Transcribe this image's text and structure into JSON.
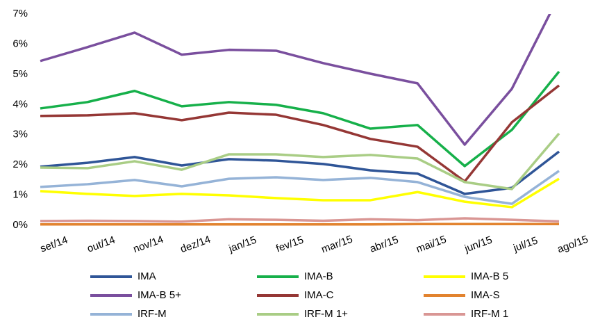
{
  "chart_data": {
    "type": "line",
    "categories": [
      "set/14",
      "out/14",
      "nov/14",
      "dez/14",
      "jan/15",
      "fev/15",
      "mar/15",
      "abr/15",
      "mai/15",
      "jun/15",
      "jul/15",
      "ago/15"
    ],
    "ylim": [
      0,
      7
    ],
    "yticks": [
      {
        "value": 0,
        "label": "0%"
      },
      {
        "value": 1,
        "label": "1%"
      },
      {
        "value": 2,
        "label": "2%"
      },
      {
        "value": 3,
        "label": "3%"
      },
      {
        "value": 4,
        "label": "4%"
      },
      {
        "value": 5,
        "label": "5%"
      },
      {
        "value": 6,
        "label": "6%"
      },
      {
        "value": 7,
        "label": "7%"
      }
    ],
    "grid": false,
    "legend": "bottom",
    "series": [
      {
        "name": "IMA",
        "color": "#2f5597",
        "values": [
          1.94,
          2.07,
          2.26,
          1.98,
          2.19,
          2.14,
          2.03,
          1.82,
          1.71,
          1.04,
          1.24,
          2.44
        ]
      },
      {
        "name": "IMA-B",
        "color": "#16b04a",
        "values": [
          3.87,
          4.08,
          4.45,
          3.94,
          4.08,
          3.99,
          3.71,
          3.2,
          3.32,
          1.96,
          3.16,
          5.09
        ]
      },
      {
        "name": "IMA-B 5",
        "color": "#ffff00",
        "values": [
          1.13,
          1.04,
          0.97,
          1.04,
          0.99,
          0.9,
          0.83,
          0.83,
          1.1,
          0.78,
          0.6,
          1.54
        ]
      },
      {
        "name": "IMA-B 5+",
        "color": "#7a4f9e",
        "values": [
          5.44,
          5.9,
          6.38,
          5.65,
          5.81,
          5.78,
          5.37,
          5.02,
          4.7,
          2.67,
          4.52,
          7.6
        ]
      },
      {
        "name": "IMA-C",
        "color": "#953735",
        "values": [
          3.62,
          3.64,
          3.71,
          3.48,
          3.73,
          3.66,
          3.32,
          2.86,
          2.6,
          1.45,
          3.41,
          4.63
        ]
      },
      {
        "name": "IMA-S",
        "color": "#e2832f",
        "values": [
          0.03,
          0.03,
          0.03,
          0.03,
          0.03,
          0.03,
          0.03,
          0.03,
          0.04,
          0.04,
          0.04,
          0.04
        ]
      },
      {
        "name": "IRF-M",
        "color": "#95b3d7",
        "values": [
          1.27,
          1.36,
          1.5,
          1.29,
          1.54,
          1.59,
          1.5,
          1.57,
          1.43,
          0.94,
          0.71,
          1.8
        ]
      },
      {
        "name": "IRF-M 1+",
        "color": "#a9cd85",
        "values": [
          1.91,
          1.89,
          2.12,
          1.84,
          2.35,
          2.35,
          2.26,
          2.33,
          2.21,
          1.43,
          1.2,
          3.04
        ]
      },
      {
        "name": "IRF-M 1",
        "color": "#d99694",
        "values": [
          0.14,
          0.15,
          0.14,
          0.12,
          0.2,
          0.18,
          0.15,
          0.2,
          0.17,
          0.23,
          0.18,
          0.13
        ]
      }
    ]
  }
}
